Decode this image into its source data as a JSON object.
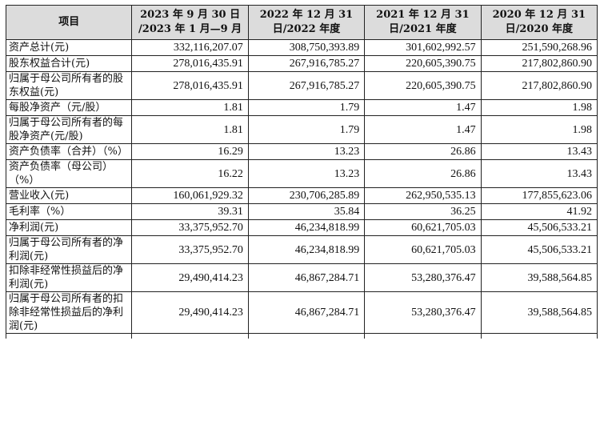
{
  "table": {
    "headers": [
      "项目",
      "2023 年 9 月 30 日 /2023 年 1 月—9 月",
      "2022 年 12 月 31 日/2022 年度",
      "2021 年 12 月 31 日/2021 年度",
      "2020 年 12 月 31 日/2020 年度"
    ],
    "rows": [
      {
        "label": "资产总计(元)",
        "values": [
          "332,116,207.07",
          "308,750,393.89",
          "301,602,992.57",
          "251,590,268.96"
        ]
      },
      {
        "label": "股东权益合计(元)",
        "values": [
          "278,016,435.91",
          "267,916,785.27",
          "220,605,390.75",
          "217,802,860.90"
        ]
      },
      {
        "label": "归属于母公司所有者的股东权益(元)",
        "values": [
          "278,016,435.91",
          "267,916,785.27",
          "220,605,390.75",
          "217,802,860.90"
        ]
      },
      {
        "label": "每股净资产（元/股）",
        "values": [
          "1.81",
          "1.79",
          "1.47",
          "1.98"
        ]
      },
      {
        "label": "归属于母公司所有者的每股净资产(元/股)",
        "values": [
          "1.81",
          "1.79",
          "1.47",
          "1.98"
        ]
      },
      {
        "label": "资产负债率（合并）（%）",
        "values": [
          "16.29",
          "13.23",
          "26.86",
          "13.43"
        ]
      },
      {
        "label": "资产负债率（母公司）（%）",
        "values": [
          "16.22",
          "13.23",
          "26.86",
          "13.43"
        ]
      },
      {
        "label": "营业收入(元)",
        "values": [
          "160,061,929.32",
          "230,706,285.89",
          "262,950,535.13",
          "177,855,623.06"
        ]
      },
      {
        "label": "毛利率（%）",
        "values": [
          "39.31",
          "35.84",
          "36.25",
          "41.92"
        ]
      },
      {
        "label": "净利润(元)",
        "values": [
          "33,375,952.70",
          "46,234,818.99",
          "60,621,705.03",
          "45,506,533.21"
        ]
      },
      {
        "label": "归属于母公司所有者的净利润(元)",
        "values": [
          "33,375,952.70",
          "46,234,818.99",
          "60,621,705.03",
          "45,506,533.21"
        ]
      },
      {
        "label": "扣除非经常性损益后的净利润(元)",
        "values": [
          "29,490,414.23",
          "46,867,284.71",
          "53,280,376.47",
          "39,588,564.85"
        ]
      },
      {
        "label": "归属于母公司所有者的扣除非经常性损益后的净利润(元)",
        "values": [
          "29,490,414.23",
          "46,867,284.71",
          "53,280,376.47",
          "39,588,564.85"
        ]
      }
    ]
  }
}
